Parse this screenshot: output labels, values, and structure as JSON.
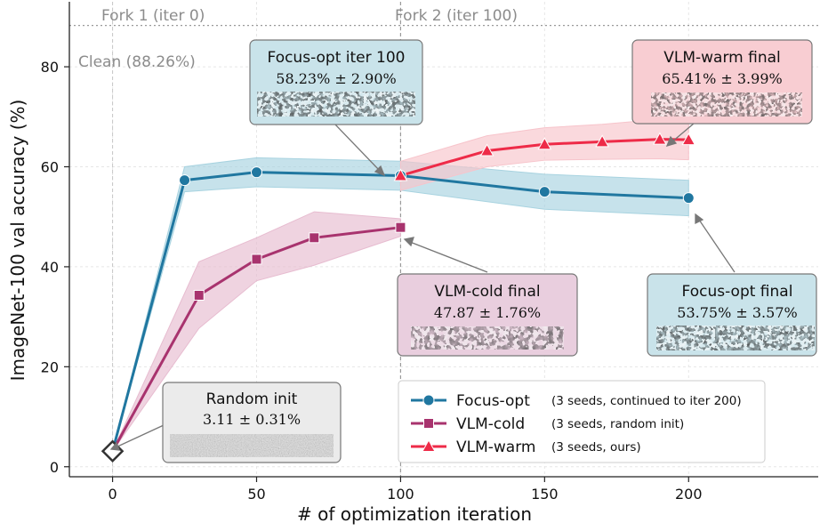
{
  "chart_data": {
    "type": "line",
    "xlabel": "# of optimization iteration",
    "ylabel": "ImageNet-100 val accuracy (%)",
    "xlim": [
      -15,
      245
    ],
    "ylim": [
      -2,
      93
    ],
    "xticks": [
      "0",
      "50",
      "100",
      "150",
      "200"
    ],
    "yticks": [
      "0",
      "20",
      "40",
      "60",
      "80"
    ],
    "grid": true,
    "legend_position": "bottom-right",
    "clean_line": {
      "y": 88.26,
      "label": "Clean (88.26%)"
    },
    "fork_lines": [
      {
        "x": 0,
        "label": "Fork 1 (iter 0)"
      },
      {
        "x": 100,
        "label": "Fork 2 (iter 100)"
      }
    ],
    "series": [
      {
        "name": "Focus-opt",
        "legend_note": "(3 seeds, continued to iter 200)",
        "color": "#2077a0",
        "band_color": "#a8d3e0",
        "marker": "circle",
        "x": [
          0,
          25,
          50,
          100,
          150,
          200
        ],
        "y": [
          3.11,
          57.3,
          58.9,
          58.23,
          55.0,
          53.75
        ],
        "band": [
          [
            3.11,
            3.11
          ],
          [
            55.0,
            60.0
          ],
          [
            56.0,
            61.8
          ],
          [
            55.3,
            61.1
          ],
          [
            51.5,
            58.5
          ],
          [
            50.2,
            57.3
          ]
        ]
      },
      {
        "name": "VLM-cold",
        "legend_note": "(3 seeds, random init)",
        "color": "#a8336e",
        "band_color": "#e7bcd0",
        "marker": "square",
        "x": [
          0,
          30,
          50,
          70,
          100
        ],
        "y": [
          3.11,
          34.3,
          41.5,
          45.8,
          47.87
        ],
        "band": [
          [
            3.11,
            3.11
          ],
          [
            27.7,
            41.0
          ],
          [
            37.2,
            45.8
          ],
          [
            40.3,
            51.0
          ],
          [
            46.1,
            49.6
          ]
        ]
      },
      {
        "name": "VLM-warm",
        "legend_note": "(3 seeds, ours)",
        "color": "#ee2b48",
        "band_color": "#f7c4cb",
        "marker": "triangle",
        "x": [
          100,
          130,
          150,
          170,
          190,
          200
        ],
        "y": [
          58.23,
          63.2,
          64.5,
          65.0,
          65.5,
          65.41
        ],
        "band": [
          [
            55.3,
            61.1
          ],
          [
            60.0,
            66.2
          ],
          [
            61.3,
            67.8
          ],
          [
            61.5,
            68.5
          ],
          [
            61.6,
            69.5
          ],
          [
            61.4,
            69.4
          ]
        ]
      }
    ],
    "start_point": {
      "x": 0,
      "y": 3.11
    },
    "annotations": [
      {
        "id": "focus-opt-100",
        "title": "Focus-opt iter 100",
        "value": "58.23% ± 2.90%",
        "fill": "#c9e3ea"
      },
      {
        "id": "vlm-warm-final",
        "title": "VLM-warm final",
        "value": "65.41% ± 3.99%",
        "fill": "#f8cdd2"
      },
      {
        "id": "vlm-cold-final",
        "title": "VLM-cold final",
        "value": "47.87 ± 1.76%",
        "fill": "#e9cede"
      },
      {
        "id": "focus-opt-final",
        "title": "Focus-opt final",
        "value": "53.75% ± 3.57%",
        "fill": "#c9e3ea"
      },
      {
        "id": "random-init",
        "title": "Random init",
        "value": "3.11 ± 0.31%",
        "fill": "#ebebeb"
      }
    ]
  }
}
